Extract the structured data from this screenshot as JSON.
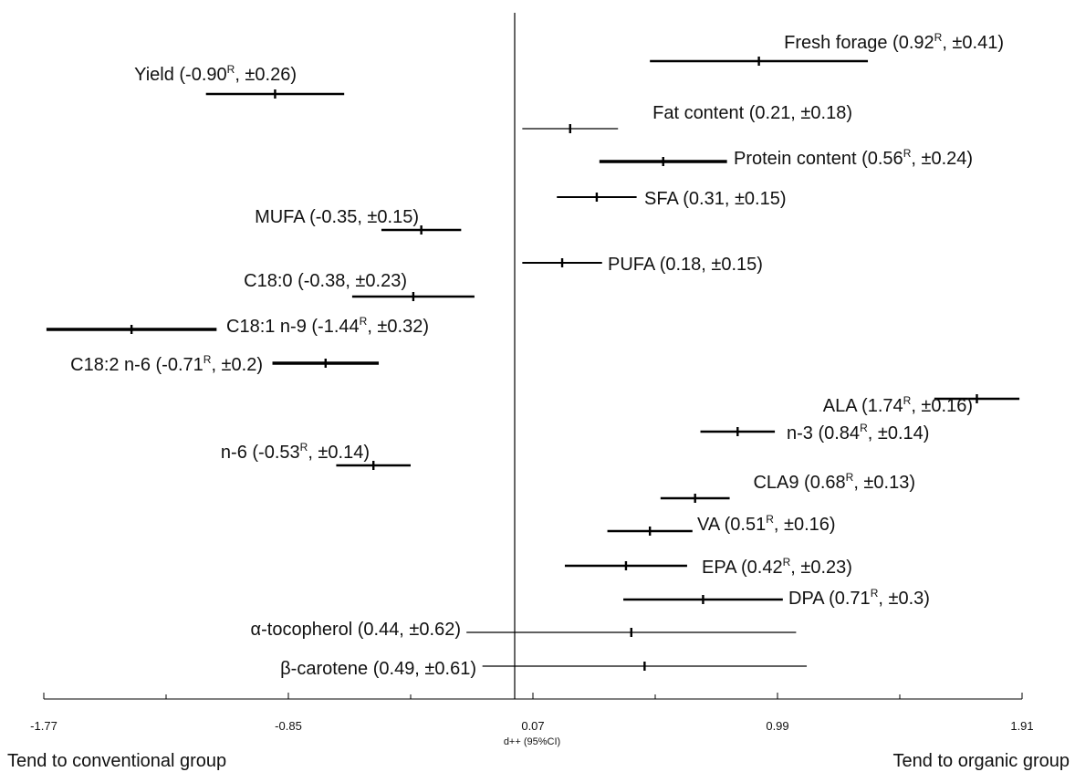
{
  "chart_data": {
    "type": "forest",
    "xlabel": "d++ (95%CI)",
    "xlim": [
      -1.77,
      1.91
    ],
    "xticks": [
      "-1.77",
      "-0.85",
      "0.07",
      "0.99",
      "1.91"
    ],
    "reference_x": 0,
    "left_caption": "Tend to conventional group",
    "right_caption": "Tend to organic group",
    "rows": [
      {
        "name": "Fresh forage",
        "d": 0.92,
        "ci": 0.41,
        "r": true,
        "label": "Fresh forage (0.92",
        "label_end": ", ±0.41)",
        "weight": "thick",
        "side": "above"
      },
      {
        "name": "Yield",
        "d": -0.9,
        "ci": 0.26,
        "r": true,
        "label": "Yield (-0.90",
        "label_end": ", ±0.26)",
        "weight": "thick",
        "side": "above"
      },
      {
        "name": "Fat content",
        "d": 0.21,
        "ci": 0.18,
        "r": false,
        "label": "Fat content (0.21, ±0.18)",
        "label_end": "",
        "weight": "thin",
        "side": "above"
      },
      {
        "name": "Protein content",
        "d": 0.56,
        "ci": 0.24,
        "r": true,
        "label": "Protein content (0.56",
        "label_end": ", ±0.24)",
        "weight": "thicker",
        "side": "right"
      },
      {
        "name": "SFA",
        "d": 0.31,
        "ci": 0.15,
        "r": false,
        "label": "SFA (0.31, ±0.15)",
        "label_end": "",
        "weight": "medium",
        "side": "right"
      },
      {
        "name": "MUFA",
        "d": -0.35,
        "ci": 0.15,
        "r": false,
        "label": "MUFA (-0.35, ±0.15)",
        "label_end": "",
        "weight": "thick",
        "side": "above"
      },
      {
        "name": "PUFA",
        "d": 0.18,
        "ci": 0.15,
        "r": false,
        "label": "PUFA (0.18, ±0.15)",
        "label_end": "",
        "weight": "medium",
        "side": "right"
      },
      {
        "name": "C18:0",
        "d": -0.38,
        "ci": 0.23,
        "r": false,
        "label": "C18:0 (-0.38, ±0.23)",
        "label_end": "",
        "weight": "thick",
        "side": "above"
      },
      {
        "name": "C18:1 n-9",
        "d": -1.44,
        "ci": 0.32,
        "r": true,
        "label": "C18:1 n-9 (-1.44",
        "label_end": ", ±0.32)",
        "weight": "thicker",
        "side": "right"
      },
      {
        "name": "C18:2 n-6",
        "d": -0.71,
        "ci": 0.2,
        "r": true,
        "label": "C18:2 n-6 (-0.71",
        "label_end": ", ±0.2)",
        "weight": "thicker",
        "side": "left"
      },
      {
        "name": "ALA",
        "d": 1.74,
        "ci": 0.16,
        "r": true,
        "label": "ALA (1.74",
        "label_end": ", ±0.16)",
        "weight": "thick",
        "side": "above"
      },
      {
        "name": "n-3",
        "d": 0.84,
        "ci": 0.14,
        "r": true,
        "label": "n-3 (0.84",
        "label_end": ", ±0.14)",
        "weight": "thick",
        "side": "right"
      },
      {
        "name": "n-6",
        "d": -0.53,
        "ci": 0.14,
        "r": true,
        "label": "n-6 (-0.53",
        "label_end": ", ±0.14)",
        "weight": "thick",
        "side": "above"
      },
      {
        "name": "CLA9",
        "d": 0.68,
        "ci": 0.13,
        "r": true,
        "label": "CLA9 (0.68",
        "label_end": ", ±0.13)",
        "weight": "thick",
        "side": "above"
      },
      {
        "name": "VA",
        "d": 0.51,
        "ci": 0.16,
        "r": true,
        "label": "VA (0.51",
        "label_end": ", ±0.16)",
        "weight": "thick",
        "side": "right"
      },
      {
        "name": "EPA",
        "d": 0.42,
        "ci": 0.23,
        "r": true,
        "label": "EPA (0.42",
        "label_end": ", ±0.23)",
        "weight": "thick",
        "side": "right"
      },
      {
        "name": "DPA",
        "d": 0.71,
        "ci": 0.3,
        "r": true,
        "label": "DPA (0.71",
        "label_end": ", ±0.3)",
        "weight": "thick",
        "side": "right"
      },
      {
        "name": "α-tocopherol",
        "d": 0.44,
        "ci": 0.62,
        "r": false,
        "label": "α-tocopherol (0.44, ±0.62)",
        "label_end": "",
        "weight": "thin",
        "side": "left"
      },
      {
        "name": "β-carotene",
        "d": 0.49,
        "ci": 0.61,
        "r": false,
        "label": "β-carotene (0.49, ±0.61)",
        "label_end": "",
        "weight": "thin",
        "side": "left"
      }
    ]
  }
}
